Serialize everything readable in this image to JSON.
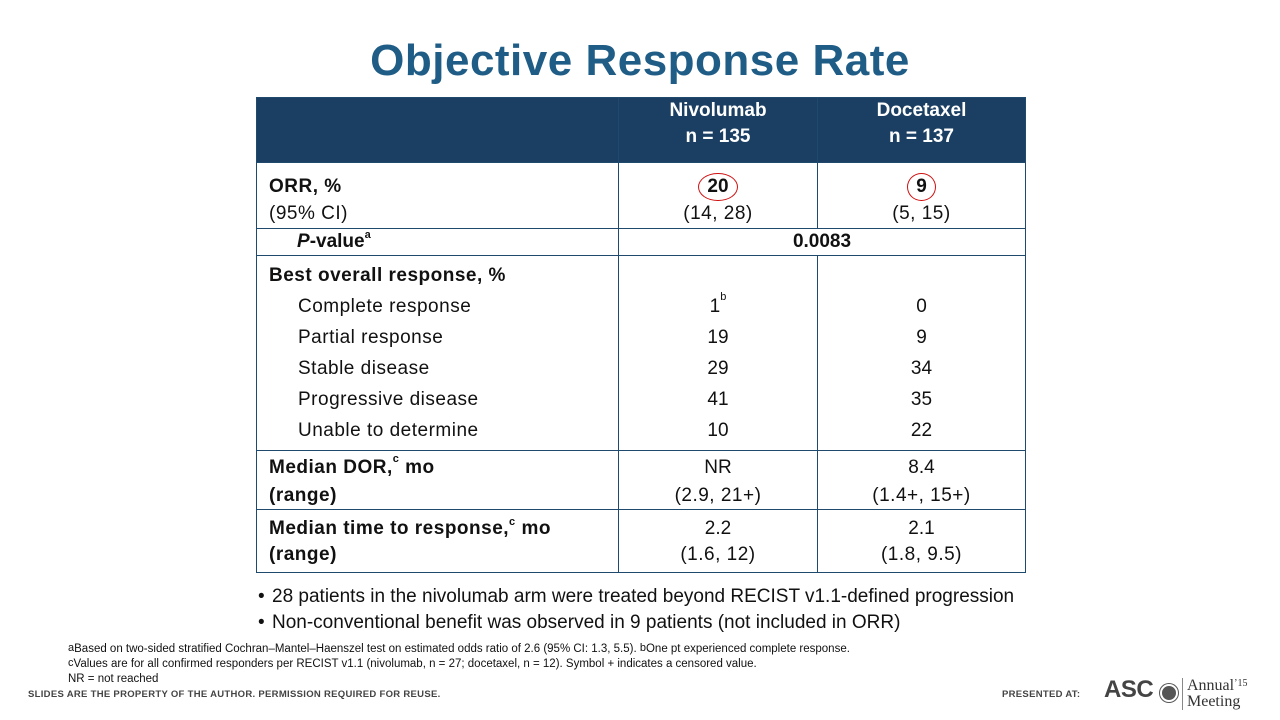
{
  "title": "Objective Response Rate",
  "header": {
    "col1_name": "Nivolumab",
    "col1_n": "n = 135",
    "col2_name": "Docetaxel",
    "col2_n": "n = 137"
  },
  "orr": {
    "label": "ORR, %",
    "ci_label": "(95% CI)",
    "nivo": "20",
    "doce": "9",
    "nivo_ci": "(14, 28)",
    "doce_ci": "(5, 15)"
  },
  "pvalue": {
    "label_italic": "P",
    "label_rest": "-value",
    "sup": "a",
    "value": "0.0083"
  },
  "bor": {
    "label": "Best overall response,  %",
    "rows": [
      {
        "label": "Complete response",
        "nivo": "1",
        "nivo_sup": "b",
        "doce": "0"
      },
      {
        "label": "Partial response",
        "nivo": "19",
        "doce": "9"
      },
      {
        "label": "Stable disease",
        "nivo": "29",
        "doce": "34"
      },
      {
        "label": "Progressive disease",
        "nivo": "41",
        "doce": "35"
      },
      {
        "label": "Unable to determine",
        "nivo": "10",
        "doce": "22"
      }
    ]
  },
  "dor": {
    "label": "Median DOR,",
    "sup": "c",
    "unit": " mo",
    "range_label": "(range)",
    "nivo": "NR",
    "doce": "8.4",
    "nivo_range": "(2.9, 21+)",
    "doce_range": "(1.4+, 15+)"
  },
  "ttr": {
    "label": "Median time to response,",
    "sup": "c",
    "unit": " mo",
    "range_label": "(range)",
    "nivo": "2.2",
    "doce": "2.1",
    "nivo_range": "(1.6, 12)",
    "doce_range": "(1.8, 9.5)"
  },
  "bullets": [
    "28 patients in the nivolumab arm were treated beyond RECIST v1.1-defined progression",
    "Non-conventional benefit was observed in 9 patients (not included in ORR)"
  ],
  "footnotes": {
    "a_sup": "a",
    "a_text": "Based on two-sided stratified Cochran–Mantel–Haenszel test on estimated odds ratio of 2.6 (95% CI: 1.3, 5.5). ",
    "b_sup": "b",
    "b_text": "One pt experienced complete response.",
    "c_sup": "c",
    "c_text": "Values are for all confirmed responders per RECIST v1.1 (nivolumab, n = 27; docetaxel, n = 12). Symbol + indicates a censored value.",
    "nr": "NR = not reached"
  },
  "footer": {
    "left": "SLIDES ARE THE PROPERTY OF THE AUTHOR. PERMISSION REQUIRED FOR REUSE.",
    "presented": "PRESENTED AT:",
    "asco": "ASC",
    "annual": "Annual",
    "year": "’15",
    "meeting": "Meeting"
  },
  "colors": {
    "title": "#1f5d86",
    "header_bg": "#1b3f63",
    "circle": "#d01010"
  }
}
